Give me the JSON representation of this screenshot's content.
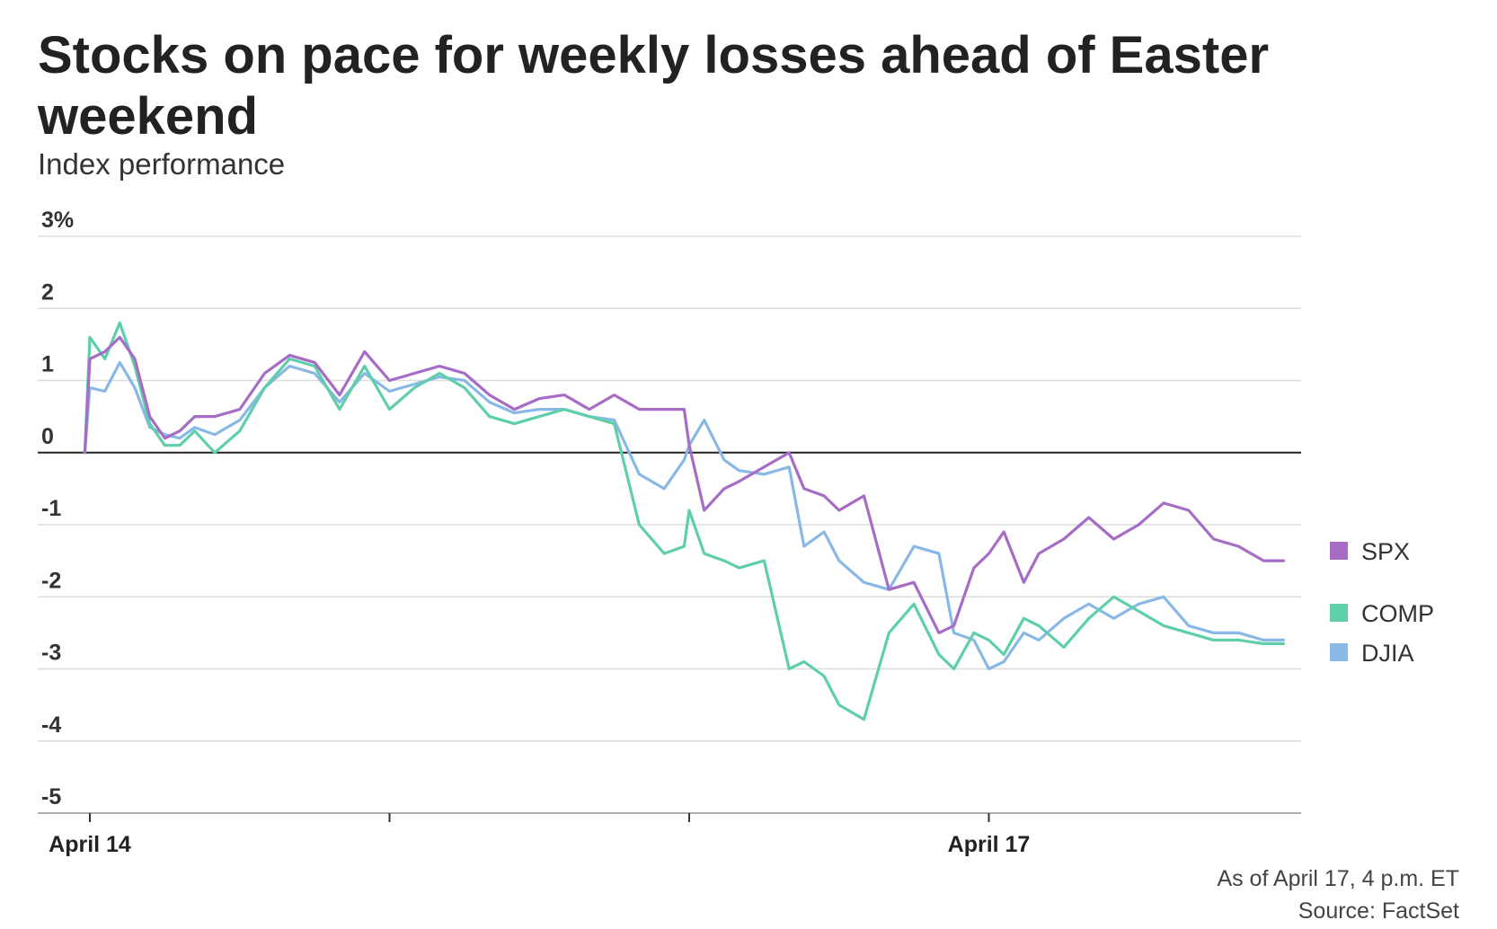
{
  "chart_data": {
    "type": "line",
    "title": "Stocks on pace for weekly losses ahead of Easter weekend",
    "subtitle": "Index performance",
    "ylabel": "",
    "xlabel": "",
    "ylim": [
      -5,
      3
    ],
    "yticks": [
      3,
      2,
      1,
      0,
      -1,
      -2,
      -3,
      -4,
      -5
    ],
    "ytick_labels": [
      "3%",
      "2",
      "1",
      "0",
      "-1",
      "-2",
      "-3",
      "-4",
      "-5"
    ],
    "xlim": [
      0,
      24
    ],
    "xticks": [
      0,
      6,
      12,
      18
    ],
    "xtick_labels": [
      "April 14",
      "",
      "",
      "April 17"
    ],
    "grid": true,
    "zero_line": true,
    "series": [
      {
        "name": "SPX",
        "color": "#A66CC6",
        "x": [
          -0.1,
          0,
          0.3,
          0.6,
          0.9,
          1.2,
          1.5,
          1.8,
          2.1,
          2.5,
          3.0,
          3.5,
          4.0,
          4.5,
          5.0,
          5.5,
          6.0,
          6.5,
          7.0,
          7.5,
          8.0,
          8.5,
          9.0,
          9.5,
          10.0,
          10.5,
          11.0,
          11.5,
          11.9,
          12.0,
          12.3,
          12.7,
          13.0,
          13.5,
          14.0,
          14.3,
          14.7,
          15.0,
          15.5,
          16.0,
          16.5,
          17.0,
          17.3,
          17.7,
          18.0,
          18.3,
          18.7,
          19.0,
          19.5,
          20.0,
          20.5,
          21.0,
          21.5,
          22.0,
          22.5,
          23.0,
          23.5,
          23.9
        ],
        "values": [
          0.0,
          1.3,
          1.4,
          1.6,
          1.3,
          0.5,
          0.2,
          0.3,
          0.5,
          0.5,
          0.6,
          1.1,
          1.35,
          1.25,
          0.8,
          1.4,
          1.0,
          1.1,
          1.2,
          1.1,
          0.8,
          0.6,
          0.75,
          0.8,
          0.6,
          0.8,
          0.6,
          0.6,
          0.6,
          0.1,
          -0.8,
          -0.5,
          -0.4,
          -0.2,
          0.0,
          -0.5,
          -0.6,
          -0.8,
          -0.6,
          -1.9,
          -1.8,
          -2.5,
          -2.4,
          -1.6,
          -1.4,
          -1.1,
          -1.8,
          -1.4,
          -1.2,
          -0.9,
          -1.2,
          -1.0,
          -0.7,
          -0.8,
          -1.2,
          -1.3,
          -1.5,
          -1.5
        ]
      },
      {
        "name": "COMP",
        "color": "#5ECFAA",
        "x": [
          -0.1,
          0,
          0.3,
          0.6,
          0.9,
          1.2,
          1.5,
          1.8,
          2.1,
          2.5,
          3.0,
          3.5,
          4.0,
          4.5,
          5.0,
          5.5,
          6.0,
          6.5,
          7.0,
          7.5,
          8.0,
          8.5,
          9.0,
          9.5,
          10.0,
          10.5,
          11.0,
          11.5,
          11.9,
          12.0,
          12.3,
          12.7,
          13.0,
          13.5,
          14.0,
          14.3,
          14.7,
          15.0,
          15.5,
          16.0,
          16.5,
          17.0,
          17.3,
          17.7,
          18.0,
          18.3,
          18.7,
          19.0,
          19.5,
          20.0,
          20.5,
          21.0,
          21.5,
          22.0,
          22.5,
          23.0,
          23.5,
          23.9
        ],
        "values": [
          0.0,
          1.6,
          1.3,
          1.8,
          1.2,
          0.4,
          0.1,
          0.1,
          0.3,
          0.0,
          0.3,
          0.9,
          1.3,
          1.2,
          0.6,
          1.2,
          0.6,
          0.9,
          1.1,
          0.9,
          0.5,
          0.4,
          0.5,
          0.6,
          0.5,
          0.4,
          -1.0,
          -1.4,
          -1.3,
          -0.8,
          -1.4,
          -1.5,
          -1.6,
          -1.5,
          -3.0,
          -2.9,
          -3.1,
          -3.5,
          -3.7,
          -2.5,
          -2.1,
          -2.8,
          -3.0,
          -2.5,
          -2.6,
          -2.8,
          -2.3,
          -2.4,
          -2.7,
          -2.3,
          -2.0,
          -2.2,
          -2.4,
          -2.5,
          -2.6,
          -2.6,
          -2.65,
          -2.65
        ]
      },
      {
        "name": "DJIA",
        "color": "#8AB8E6",
        "x": [
          -0.1,
          0,
          0.3,
          0.6,
          0.9,
          1.2,
          1.5,
          1.8,
          2.1,
          2.5,
          3.0,
          3.5,
          4.0,
          4.5,
          5.0,
          5.5,
          6.0,
          6.5,
          7.0,
          7.5,
          8.0,
          8.5,
          9.0,
          9.5,
          10.0,
          10.5,
          11.0,
          11.5,
          11.9,
          12.0,
          12.3,
          12.7,
          13.0,
          13.5,
          14.0,
          14.3,
          14.7,
          15.0,
          15.5,
          16.0,
          16.5,
          17.0,
          17.3,
          17.7,
          18.0,
          18.3,
          18.7,
          19.0,
          19.5,
          20.0,
          20.5,
          21.0,
          21.5,
          22.0,
          22.5,
          23.0,
          23.5,
          23.9
        ],
        "values": [
          0.0,
          0.9,
          0.85,
          1.25,
          0.9,
          0.35,
          0.25,
          0.2,
          0.35,
          0.25,
          0.45,
          0.9,
          1.2,
          1.1,
          0.7,
          1.1,
          0.85,
          0.95,
          1.05,
          1.0,
          0.7,
          0.55,
          0.6,
          0.6,
          0.5,
          0.45,
          -0.3,
          -0.5,
          -0.1,
          0.1,
          0.45,
          -0.1,
          -0.25,
          -0.3,
          -0.2,
          -1.3,
          -1.1,
          -1.5,
          -1.8,
          -1.9,
          -1.3,
          -1.4,
          -2.5,
          -2.6,
          -3.0,
          -2.9,
          -2.5,
          -2.6,
          -2.3,
          -2.1,
          -2.3,
          -2.1,
          -2.0,
          -2.4,
          -2.5,
          -2.5,
          -2.6,
          -2.6
        ]
      }
    ],
    "legend": {
      "position": "right",
      "entries": [
        "SPX",
        "COMP",
        "DJIA"
      ]
    },
    "annotations": [
      "As of April 17, 4 p.m. ET",
      "Source: FactSet"
    ]
  },
  "note": "As of April 17, 4 p.m. ET",
  "source": "Source: FactSet"
}
